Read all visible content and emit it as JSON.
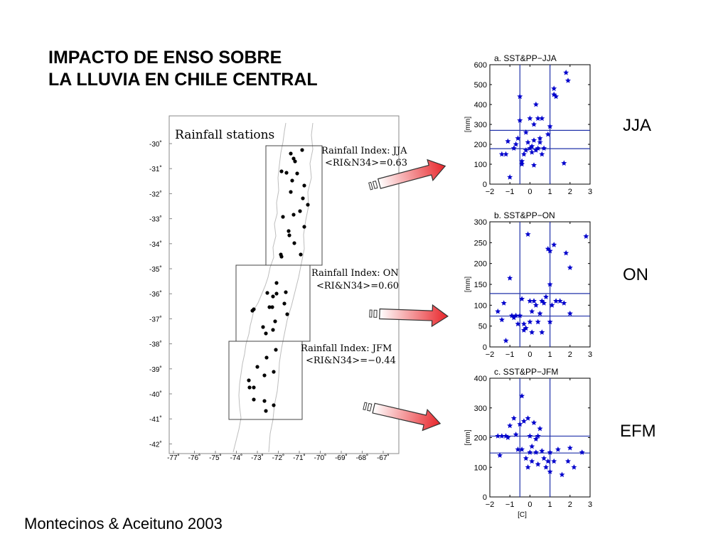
{
  "slide": {
    "title_line1": "IMPACTO DE ENSO SOBRE",
    "title_line2": "LA LLUVIA EN CHILE CENTRAL",
    "citation": "Montecinos & Aceituno 2003",
    "season_labels": [
      "JJA",
      "ON",
      "EFM"
    ]
  },
  "map": {
    "title": "Rainfall stations",
    "lat_labels": [
      "-30˚",
      "-31˚",
      "-32˚",
      "-33˚",
      "-34˚",
      "-35˚",
      "-36˚",
      "-37˚",
      "-38˚",
      "-39˚",
      "-40˚",
      "-41˚",
      "-42˚"
    ],
    "lon_labels": [
      "-77˚",
      "-76˚",
      "-75˚",
      "-74˚",
      "-73˚",
      "-72˚",
      "-71˚",
      "-70˚",
      "-69˚",
      "-68˚",
      "-67˚"
    ],
    "indices": [
      {
        "label": "Rainfall Index: JJA",
        "corr": "<RI&N34>=0.63"
      },
      {
        "label": "Rainfall Index: ON",
        "corr": "<RI&N34>=0.60"
      },
      {
        "label": "Rainfall Index: JFM",
        "corr": "<RI&N34>=−0.44"
      }
    ],
    "colors": {
      "arrow_start": "#ffffff",
      "arrow_end": "#e8252a",
      "coast": "#bdbdbd"
    }
  },
  "chart_data": [
    {
      "type": "scatter",
      "title": "a. SST&PP−JJA",
      "ylabel": "[mm]",
      "xlabel": "",
      "xlim": [
        -2,
        3
      ],
      "ylim": [
        0,
        600
      ],
      "xticks": [
        -2,
        -1,
        0,
        1,
        2,
        3
      ],
      "yticks": [
        0,
        100,
        200,
        300,
        400,
        500,
        600
      ],
      "hlines": [
        270,
        178
      ],
      "vlines": [
        -0.5,
        1.0
      ],
      "marker_color": "#0000cc",
      "points": [
        [
          -1.4,
          150
        ],
        [
          -1.2,
          150
        ],
        [
          -1.1,
          215
        ],
        [
          -1.0,
          35
        ],
        [
          -0.8,
          180
        ],
        [
          -0.7,
          200
        ],
        [
          -0.6,
          230
        ],
        [
          -0.5,
          440
        ],
        [
          -0.5,
          320
        ],
        [
          -0.4,
          115
        ],
        [
          -0.4,
          100
        ],
        [
          -0.3,
          150
        ],
        [
          -0.2,
          260
        ],
        [
          -0.2,
          170
        ],
        [
          -0.1,
          210
        ],
        [
          0.0,
          330
        ],
        [
          0.0,
          180
        ],
        [
          0.1,
          190
        ],
        [
          0.1,
          160
        ],
        [
          0.2,
          300
        ],
        [
          0.2,
          220
        ],
        [
          0.2,
          95
        ],
        [
          0.3,
          400
        ],
        [
          0.3,
          170
        ],
        [
          0.4,
          180
        ],
        [
          0.4,
          330
        ],
        [
          0.5,
          210
        ],
        [
          0.5,
          230
        ],
        [
          0.6,
          330
        ],
        [
          0.6,
          150
        ],
        [
          0.7,
          180
        ],
        [
          0.9,
          250
        ],
        [
          1.0,
          290
        ],
        [
          1.2,
          480
        ],
        [
          1.2,
          450
        ],
        [
          1.3,
          440
        ],
        [
          1.8,
          560
        ],
        [
          1.9,
          520
        ],
        [
          1.7,
          105
        ]
      ]
    },
    {
      "type": "scatter",
      "title": "b. SST&PP−ON",
      "ylabel": "[mm]",
      "xlabel": "",
      "xlim": [
        -2,
        3
      ],
      "ylim": [
        0,
        300
      ],
      "xticks": [
        -2,
        -1,
        0,
        1,
        2,
        3
      ],
      "yticks": [
        0,
        50,
        100,
        150,
        200,
        250,
        300
      ],
      "hlines": [
        128,
        74
      ],
      "vlines": [
        -0.5,
        1.0
      ],
      "marker_color": "#0000cc",
      "points": [
        [
          -1.6,
          85
        ],
        [
          -1.4,
          65
        ],
        [
          -1.3,
          105
        ],
        [
          -1.2,
          15
        ],
        [
          -1.0,
          165
        ],
        [
          -0.9,
          75
        ],
        [
          -0.8,
          70
        ],
        [
          -0.7,
          75
        ],
        [
          -0.6,
          55
        ],
        [
          -0.5,
          75
        ],
        [
          -0.4,
          115
        ],
        [
          -0.3,
          55
        ],
        [
          -0.2,
          45
        ],
        [
          -0.1,
          270
        ],
        [
          0.0,
          110
        ],
        [
          0.0,
          60
        ],
        [
          0.1,
          85
        ],
        [
          0.1,
          35
        ],
        [
          0.2,
          110
        ],
        [
          0.3,
          100
        ],
        [
          0.4,
          60
        ],
        [
          0.5,
          80
        ],
        [
          0.6,
          110
        ],
        [
          0.7,
          105
        ],
        [
          0.8,
          120
        ],
        [
          0.9,
          235
        ],
        [
          1.0,
          230
        ],
        [
          1.0,
          150
        ],
        [
          1.0,
          60
        ],
        [
          1.1,
          100
        ],
        [
          1.2,
          245
        ],
        [
          1.3,
          110
        ],
        [
          1.5,
          110
        ],
        [
          1.7,
          105
        ],
        [
          1.8,
          225
        ],
        [
          2.0,
          190
        ],
        [
          2.0,
          80
        ],
        [
          2.8,
          265
        ],
        [
          0.6,
          35
        ],
        [
          -0.3,
          40
        ]
      ]
    },
    {
      "type": "scatter",
      "title": "c. SST&PP−JFM",
      "ylabel": "[mm]",
      "xlabel": "[C]",
      "xlim": [
        -2,
        3
      ],
      "ylim": [
        0,
        400
      ],
      "xticks": [
        -2,
        -1,
        0,
        1,
        2,
        3
      ],
      "yticks": [
        0,
        100,
        200,
        300,
        400
      ],
      "hlines": [
        205,
        148
      ],
      "vlines": [
        -0.5,
        1.0
      ],
      "marker_color": "#0000cc",
      "points": [
        [
          -1.6,
          205
        ],
        [
          -1.5,
          140
        ],
        [
          -1.4,
          205
        ],
        [
          -1.2,
          205
        ],
        [
          -1.1,
          200
        ],
        [
          -1.0,
          240
        ],
        [
          -0.8,
          265
        ],
        [
          -0.7,
          210
        ],
        [
          -0.6,
          160
        ],
        [
          -0.5,
          245
        ],
        [
          -0.4,
          340
        ],
        [
          -0.4,
          160
        ],
        [
          -0.3,
          255
        ],
        [
          -0.2,
          130
        ],
        [
          -0.1,
          265
        ],
        [
          -0.1,
          100
        ],
        [
          0.0,
          205
        ],
        [
          0.0,
          150
        ],
        [
          0.1,
          170
        ],
        [
          0.1,
          120
        ],
        [
          0.2,
          250
        ],
        [
          0.3,
          195
        ],
        [
          0.3,
          150
        ],
        [
          0.4,
          110
        ],
        [
          0.4,
          205
        ],
        [
          0.5,
          230
        ],
        [
          0.6,
          155
        ],
        [
          0.7,
          130
        ],
        [
          0.8,
          100
        ],
        [
          0.9,
          120
        ],
        [
          1.0,
          150
        ],
        [
          1.0,
          85
        ],
        [
          1.2,
          120
        ],
        [
          1.4,
          160
        ],
        [
          1.6,
          75
        ],
        [
          1.9,
          120
        ],
        [
          2.0,
          165
        ],
        [
          2.2,
          100
        ],
        [
          2.6,
          150
        ]
      ]
    }
  ]
}
